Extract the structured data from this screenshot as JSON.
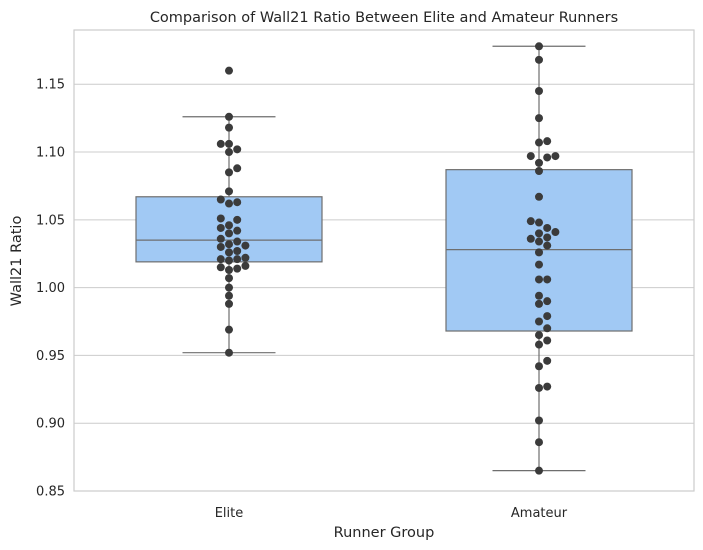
{
  "chart_data": {
    "type": "box",
    "title": "Comparison of Wall21 Ratio Between Elite and Amateur Runners",
    "xlabel": "Runner Group",
    "ylabel": "Wall21 Ratio",
    "ylim": [
      0.85,
      1.19
    ],
    "yticks": [
      0.85,
      0.9,
      0.95,
      1.0,
      1.05,
      1.1,
      1.15
    ],
    "ytick_labels": [
      "0.85",
      "0.90",
      "0.95",
      "1.00",
      "1.05",
      "1.10",
      "1.15"
    ],
    "grid": true,
    "colors": {
      "box_fill": "#a1c9f4",
      "box_edge": "#6e6e6e",
      "point": "#3b3b3b",
      "grid": "#cccccc",
      "frame": "#cccccc"
    },
    "categories": [
      "Elite",
      "Amateur"
    ],
    "boxes": [
      {
        "name": "Elite",
        "whisker_low": 0.952,
        "q1": 1.019,
        "median": 1.035,
        "q3": 1.067,
        "whisker_high": 1.126,
        "points": [
          1.16,
          1.126,
          1.118,
          1.106,
          1.106,
          1.1,
          1.102,
          1.088,
          1.085,
          1.071,
          1.065,
          1.063,
          1.062,
          1.051,
          1.05,
          1.046,
          1.044,
          1.042,
          1.04,
          1.036,
          1.034,
          1.032,
          1.031,
          1.03,
          1.027,
          1.026,
          1.022,
          1.021,
          1.021,
          1.02,
          1.016,
          1.015,
          1.014,
          1.013,
          1.007,
          1.0,
          0.994,
          0.988,
          0.969,
          0.952
        ]
      },
      {
        "name": "Amateur",
        "whisker_low": 0.865,
        "q1": 0.968,
        "median": 1.028,
        "q3": 1.087,
        "whisker_high": 1.178,
        "points": [
          1.178,
          1.168,
          1.145,
          1.125,
          1.108,
          1.107,
          1.097,
          1.097,
          1.096,
          1.092,
          1.086,
          1.067,
          1.049,
          1.048,
          1.044,
          1.041,
          1.04,
          1.037,
          1.036,
          1.034,
          1.031,
          1.026,
          1.017,
          1.006,
          1.006,
          0.994,
          0.99,
          0.988,
          0.979,
          0.975,
          0.97,
          0.965,
          0.961,
          0.958,
          0.946,
          0.942,
          0.927,
          0.926,
          0.902,
          0.886,
          0.865
        ]
      }
    ]
  }
}
